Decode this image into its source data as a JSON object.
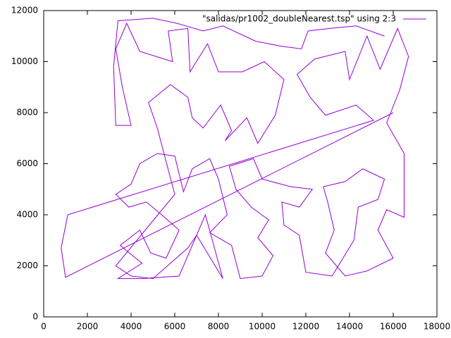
{
  "chart_data": {
    "type": "line",
    "legend": "top-right",
    "xlim": [
      0,
      18000
    ],
    "ylim": [
      0,
      12000
    ],
    "xticks": [
      0,
      2000,
      4000,
      6000,
      8000,
      10000,
      12000,
      14000,
      16000,
      18000
    ],
    "yticks": [
      0,
      2000,
      4000,
      6000,
      8000,
      10000,
      12000
    ],
    "series": [
      {
        "name": "\"salidas/pr1002_doubleNearest.tsp\" using 2:3",
        "color": "#9400d3",
        "x": [
          16000,
          1000,
          800,
          1100,
          15100,
          14300,
          12900,
          12200,
          11600,
          12400,
          13800,
          14000,
          14800,
          15400,
          16200,
          16700,
          16300,
          15700,
          16500,
          16500,
          15700,
          15300,
          16000,
          14800,
          13800,
          12900,
          13300,
          13000,
          12800,
          13800,
          14600,
          15600,
          15300,
          14400,
          14200,
          13200,
          12000,
          11700,
          11000,
          10900,
          11700,
          12300,
          11300,
          10000,
          9600,
          8500,
          8800,
          9500,
          10300,
          9800,
          10500,
          10000,
          9000,
          8600,
          7600,
          8400,
          8000,
          7600,
          6800,
          6400,
          6000,
          5200,
          4400,
          4000,
          3300,
          3900,
          4700,
          5400,
          6200,
          5600,
          4900,
          4400,
          3500,
          4500,
          3400,
          4500,
          6200,
          7400,
          8200,
          7000,
          6600,
          5000,
          4000,
          3300,
          6000,
          5200,
          4800,
          5800,
          6600,
          6800,
          7300,
          8100,
          8600,
          8300,
          9300,
          9800,
          10600,
          11000,
          10100,
          9100,
          8000,
          7500,
          6700,
          6600,
          5700,
          5900,
          4400,
          3800,
          3300,
          3600,
          4000,
          3300,
          3200,
          3400,
          5000,
          6100,
          7300,
          8200,
          9700,
          10900,
          11800,
          12100,
          13100,
          14300,
          15600
        ],
        "y": [
          8000,
          1550,
          2700,
          4000,
          7700,
          8300,
          7900,
          8600,
          9500,
          10100,
          10400,
          9300,
          11000,
          9700,
          11300,
          10200,
          8900,
          7600,
          6400,
          3900,
          4200,
          3400,
          2300,
          1800,
          1600,
          2500,
          3400,
          4500,
          5100,
          5300,
          5800,
          5400,
          4600,
          4300,
          3000,
          1600,
          1750,
          3200,
          3600,
          4500,
          4300,
          5000,
          5100,
          5400,
          6200,
          5900,
          5000,
          4300,
          3800,
          3100,
          2400,
          1600,
          1500,
          2800,
          3300,
          4000,
          5400,
          6200,
          5800,
          4900,
          6300,
          6400,
          6000,
          5200,
          4800,
          4300,
          4500,
          4000,
          3400,
          2300,
          2500,
          3400,
          2800,
          2100,
          1500,
          1500,
          1600,
          4000,
          1500,
          3200,
          2700,
          1500,
          1600,
          2000,
          4800,
          7400,
          8400,
          9100,
          8600,
          7800,
          7400,
          8300,
          7300,
          6900,
          7800,
          6800,
          7900,
          9300,
          10000,
          9600,
          9600,
          10700,
          9600,
          11300,
          11200,
          10000,
          10400,
          11500,
          10500,
          9000,
          7500,
          7500,
          9800,
          11600,
          11700,
          11500,
          11200,
          11400,
          10800,
          10600,
          10500,
          11200,
          11300,
          11400,
          11000
        ]
      }
    ]
  }
}
